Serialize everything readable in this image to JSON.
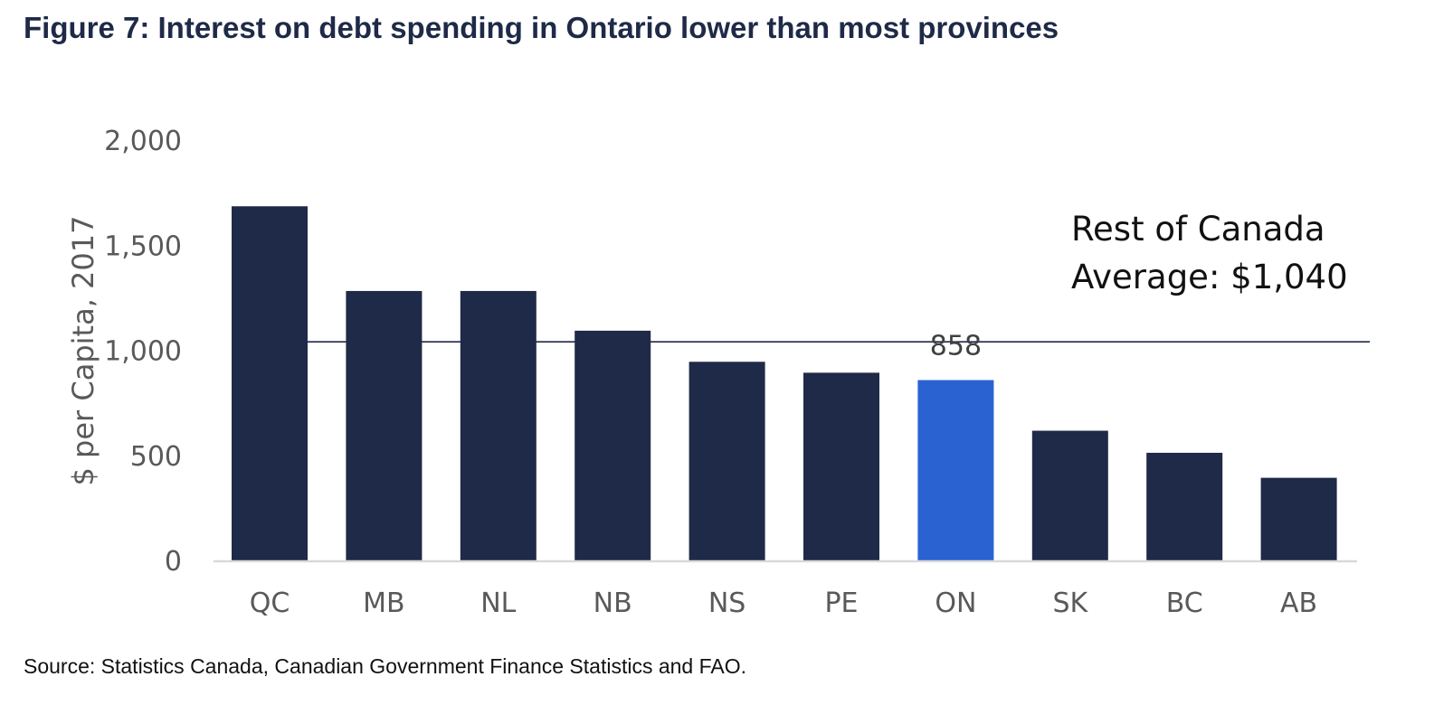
{
  "figure": {
    "title": "Figure 7: Interest on debt spending in Ontario lower than most provinces",
    "source": "Source: Statistics Canada, Canadian Government Finance Statistics and FAO."
  },
  "chart_data": {
    "type": "bar",
    "title": "",
    "xlabel": "",
    "ylabel": "$ per Capita, 2017",
    "categories": [
      "QC",
      "MB",
      "NL",
      "NB",
      "NS",
      "PE",
      "ON",
      "SK",
      "BC",
      "AB"
    ],
    "values": [
      1685,
      1282,
      1282,
      1093,
      945,
      893,
      858,
      617,
      512,
      393
    ],
    "highlight_category": "ON",
    "highlight_label": "858",
    "colors": {
      "bar": "#1e2a47",
      "highlight": "#2a62d2",
      "reference_line": "#1e2a47"
    },
    "ylim": [
      0,
      2000
    ],
    "yticks": [
      0,
      500,
      1000,
      1500,
      2000
    ],
    "ytick_labels": [
      "0",
      "500",
      "1,000",
      "1,500",
      "2,000"
    ],
    "grid": false,
    "legend": "none",
    "reference_line": {
      "value": 1040,
      "label_line1": "Rest of Canada",
      "label_line2": "Average: $1,040"
    }
  }
}
